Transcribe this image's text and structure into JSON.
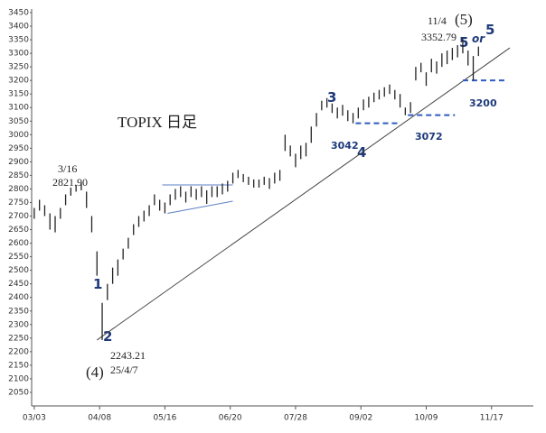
{
  "chart_data": {
    "type": "hl-bar",
    "title": "TOPIX 日足",
    "color": "#222222",
    "x": [
      0,
      2,
      4,
      6,
      8,
      10,
      12,
      14,
      16,
      18,
      20,
      22,
      24,
      26,
      28,
      30,
      32,
      34,
      36,
      38,
      40,
      42,
      44,
      46,
      48,
      50,
      52,
      54,
      56,
      58,
      60,
      62,
      64,
      66,
      68,
      70,
      72,
      74,
      76,
      78,
      80,
      82,
      84,
      86,
      88,
      90,
      92,
      94,
      96,
      98,
      100,
      102,
      104,
      106,
      108,
      110,
      112,
      114,
      116,
      118,
      120,
      122,
      124,
      126,
      128,
      130,
      132,
      134,
      136,
      138,
      140,
      142,
      144,
      146,
      148,
      150,
      152,
      154,
      156,
      158,
      160,
      162,
      164,
      166,
      168,
      170
    ],
    "high": [
      2730,
      2760,
      2740,
      2710,
      2700,
      2730,
      2780,
      2805,
      2815,
      2822,
      2790,
      2700,
      2570,
      2380,
      2450,
      2510,
      2540,
      2580,
      2620,
      2670,
      2700,
      2720,
      2740,
      2780,
      2760,
      2750,
      2780,
      2800,
      2810,
      2790,
      2810,
      2800,
      2810,
      2795,
      2810,
      2810,
      2820,
      2830,
      2860,
      2870,
      2855,
      2845,
      2835,
      2835,
      2845,
      2840,
      2860,
      2870,
      3000,
      2960,
      2930,
      2960,
      2970,
      3030,
      3080,
      3125,
      3135,
      3115,
      3100,
      3110,
      3090,
      3080,
      3100,
      3130,
      3140,
      3155,
      3165,
      3175,
      3185,
      3165,
      3150,
      3100,
      3120,
      3250,
      3265,
      3230,
      3280,
      3270,
      3300,
      3310,
      3320,
      3330,
      3352.79,
      3310,
      3290,
      3325
    ],
    "low": [
      2690,
      2720,
      2700,
      2650,
      2640,
      2690,
      2740,
      2775,
      2790,
      2795,
      2730,
      2640,
      2480,
      2243,
      2390,
      2450,
      2480,
      2540,
      2580,
      2630,
      2660,
      2680,
      2700,
      2740,
      2720,
      2710,
      2740,
      2760,
      2770,
      2750,
      2770,
      2760,
      2770,
      2745,
      2770,
      2770,
      2780,
      2790,
      2820,
      2840,
      2825,
      2815,
      2805,
      2805,
      2815,
      2800,
      2820,
      2830,
      2940,
      2920,
      2880,
      2910,
      2920,
      2970,
      3030,
      3090,
      3100,
      3080,
      3060,
      3070,
      3050,
      3042,
      3060,
      3090,
      3100,
      3120,
      3130,
      3140,
      3150,
      3130,
      3100,
      3072,
      3080,
      3200,
      3230,
      3180,
      3230,
      3225,
      3250,
      3260,
      3275,
      3285,
      3300,
      3255,
      3200,
      3290
    ],
    "xlim": [
      -1,
      191
    ],
    "xticks": [
      {
        "value": 0,
        "label": "03/03"
      },
      {
        "value": 25,
        "label": "04/08"
      },
      {
        "value": 50,
        "label": "05/16"
      },
      {
        "value": 75,
        "label": "06/20"
      },
      {
        "value": 100,
        "label": "07/28"
      },
      {
        "value": 125,
        "label": "09/02"
      },
      {
        "value": 150,
        "label": "10/09"
      },
      {
        "value": 175,
        "label": "11/17"
      }
    ],
    "ylim": [
      2000,
      3450
    ],
    "yticks": [
      2050,
      2100,
      2150,
      2200,
      2250,
      2300,
      2350,
      2400,
      2450,
      2500,
      2550,
      2600,
      2650,
      2700,
      2750,
      2800,
      2850,
      2900,
      2950,
      3000,
      3050,
      3100,
      3150,
      3200,
      3250,
      3300,
      3350,
      3400,
      3450
    ],
    "lines": [
      {
        "x": [
          24,
          182
        ],
        "y": [
          2243,
          3320
        ],
        "color": "#444444"
      },
      {
        "x": [
          49,
          76
        ],
        "y": [
          2815,
          2815
        ],
        "color": "#5b7fc4"
      },
      {
        "x": [
          51,
          76
        ],
        "y": [
          2710,
          2755
        ],
        "color": "#5b7fc4"
      },
      {
        "x": [
          123,
          140
        ],
        "y": [
          3042,
          3042
        ],
        "color": "#2f5bbf",
        "dashed": true
      },
      {
        "x": [
          143,
          161
        ],
        "y": [
          3072,
          3072
        ],
        "color": "#2f5bbf",
        "dashed": true
      },
      {
        "x": [
          164,
          181
        ],
        "y": [
          3200,
          3200
        ],
        "color": "#2f5bbf",
        "dashed": true
      }
    ],
    "annotations": [
      "3/16",
      "2821.90",
      "2243.21",
      "25/4/7",
      "(4)",
      "1",
      "2",
      "3",
      "3042",
      "4",
      "3072",
      "11/4",
      "3352.79",
      "(5)",
      "5",
      "or",
      "5",
      "3200"
    ]
  }
}
